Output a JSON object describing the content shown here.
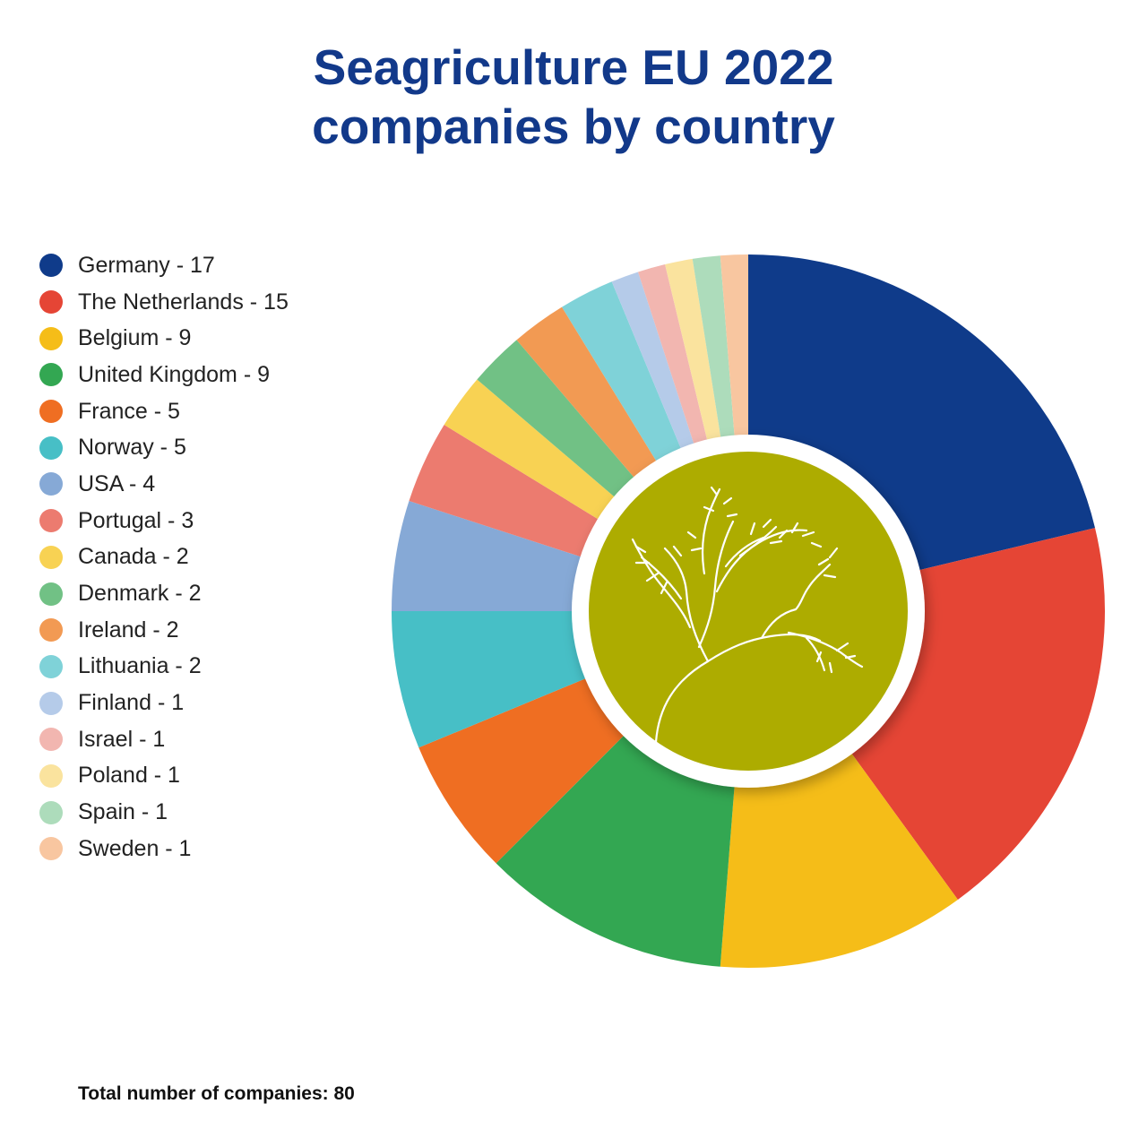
{
  "title_lines": [
    "Seagriculture EU 2022",
    "companies by country"
  ],
  "total_label": "Total number of companies: 80",
  "chart_data": {
    "type": "pie",
    "title": "Seagriculture EU 2022 companies by country",
    "legend_position": "left",
    "total": 80,
    "center_color": "#adac00",
    "series": [
      {
        "name": "Germany",
        "value": 17,
        "label": "Germany - 17",
        "color": "#0f3b8a"
      },
      {
        "name": "The Netherlands",
        "value": 15,
        "label": "The Netherlands - 15",
        "color": "#e54535"
      },
      {
        "name": "Belgium",
        "value": 9,
        "label": "Belgium - 9",
        "color": "#f5bd18"
      },
      {
        "name": "United Kingdom",
        "value": 9,
        "label": "United Kingdom - 9",
        "color": "#33a752"
      },
      {
        "name": "France",
        "value": 5,
        "label": "France - 5",
        "color": "#ef6e22"
      },
      {
        "name": "Norway",
        "value": 5,
        "label": "Norway - 5",
        "color": "#47bfc6"
      },
      {
        "name": "USA",
        "value": 4,
        "label": "USA - 4",
        "color": "#86a9d6"
      },
      {
        "name": "Portugal",
        "value": 3,
        "label": "Portugal - 3",
        "color": "#ec7b6f"
      },
      {
        "name": "Canada",
        "value": 2,
        "label": "Canada - 2",
        "color": "#f8d253"
      },
      {
        "name": "Denmark",
        "value": 2,
        "label": "Denmark - 2",
        "color": "#71c185"
      },
      {
        "name": "Ireland",
        "value": 2,
        "label": "Ireland - 2",
        "color": "#f29a53"
      },
      {
        "name": "Lithuania",
        "value": 2,
        "label": "Lithuania - 2",
        "color": "#7fd2d8"
      },
      {
        "name": "Finland",
        "value": 1,
        "label": "Finland - 1",
        "color": "#b5cbe9"
      },
      {
        "name": "Israel",
        "value": 1,
        "label": "Israel - 1",
        "color": "#f2b6b0"
      },
      {
        "name": "Poland",
        "value": 1,
        "label": "Poland - 1",
        "color": "#fae39e"
      },
      {
        "name": "Spain",
        "value": 1,
        "label": "Spain - 1",
        "color": "#addcbb"
      },
      {
        "name": "Sweden",
        "value": 1,
        "label": "Sweden - 1",
        "color": "#f8c6a0"
      }
    ]
  }
}
